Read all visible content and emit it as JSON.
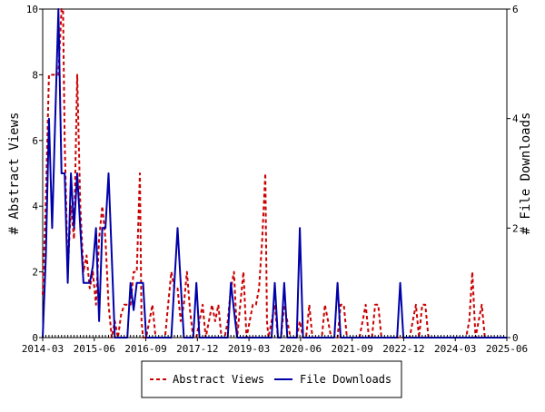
{
  "chart_data": {
    "type": "line",
    "x_tick_labels": [
      "2014-03",
      "2015-06",
      "2016-09",
      "2017-12",
      "2019-03",
      "2020-06",
      "2021-09",
      "2022-12",
      "2024-03",
      "2025-06"
    ],
    "left_axis": {
      "label": "# Abstract Views",
      "ylim": [
        0,
        10
      ],
      "ticks": [
        "0",
        "2",
        "4",
        "6",
        "8",
        "10"
      ]
    },
    "right_axis": {
      "label": "# File Downloads",
      "ylim": [
        0,
        6
      ],
      "ticks": [
        "0",
        "2",
        "4",
        "6"
      ]
    },
    "grid": false,
    "legend_position": "bottom-center",
    "series": [
      {
        "name": "Abstract Views",
        "axis": "left",
        "color": "#cc0000",
        "style": "dashed",
        "points": [
          [
            0,
            1.3
          ],
          [
            1,
            4.2
          ],
          [
            2,
            8
          ],
          [
            3,
            8
          ],
          [
            4,
            8
          ],
          [
            5,
            8
          ],
          [
            6,
            10
          ],
          [
            6.5,
            10
          ],
          [
            7,
            6
          ],
          [
            8,
            2
          ],
          [
            9,
            4
          ],
          [
            10,
            3
          ],
          [
            11,
            8
          ],
          [
            12,
            4
          ],
          [
            13,
            2
          ],
          [
            14,
            2.5
          ],
          [
            15,
            1.5
          ],
          [
            16,
            2
          ],
          [
            17,
            1
          ],
          [
            18,
            3
          ],
          [
            19,
            4
          ],
          [
            20,
            3
          ],
          [
            21,
            1
          ],
          [
            22,
            0
          ],
          [
            23,
            0.5
          ],
          [
            24,
            0
          ],
          [
            25,
            0.7
          ],
          [
            26,
            1
          ],
          [
            27,
            1
          ],
          [
            28,
            1
          ],
          [
            29,
            2
          ],
          [
            30,
            2
          ],
          [
            31,
            5
          ],
          [
            31.5,
            0.5
          ],
          [
            32,
            0
          ],
          [
            33,
            0
          ],
          [
            34,
            0.5
          ],
          [
            35,
            1
          ],
          [
            36,
            0
          ],
          [
            37,
            0
          ],
          [
            38,
            0
          ],
          [
            39,
            0
          ],
          [
            40,
            1
          ],
          [
            41,
            2
          ],
          [
            42,
            1.5
          ],
          [
            43,
            1.5
          ],
          [
            44,
            0.5
          ],
          [
            45,
            1
          ],
          [
            46,
            2
          ],
          [
            47,
            0.8
          ],
          [
            48,
            0
          ],
          [
            49,
            0
          ],
          [
            50,
            0.5
          ],
          [
            51,
            1
          ],
          [
            52,
            0
          ],
          [
            53,
            0.5
          ],
          [
            54,
            1
          ],
          [
            55,
            0.5
          ],
          [
            56,
            1
          ],
          [
            57,
            0
          ],
          [
            58,
            0
          ],
          [
            59,
            0.5
          ],
          [
            60,
            1.5
          ],
          [
            61,
            2
          ],
          [
            62,
            0
          ],
          [
            63,
            1
          ],
          [
            64,
            2
          ],
          [
            65,
            0
          ],
          [
            66,
            0.5
          ],
          [
            67,
            1
          ],
          [
            68,
            1
          ],
          [
            69,
            1.5
          ],
          [
            70,
            3
          ],
          [
            71,
            5
          ],
          [
            71.5,
            0.5
          ],
          [
            72,
            0
          ],
          [
            73,
            0.5
          ],
          [
            74,
            1
          ],
          [
            75,
            0
          ],
          [
            76,
            0
          ],
          [
            77,
            1
          ],
          [
            78,
            0.5
          ],
          [
            79,
            0
          ],
          [
            80,
            0
          ],
          [
            81,
            0
          ],
          [
            82,
            0.5
          ],
          [
            83,
            0
          ],
          [
            84,
            0
          ],
          [
            85,
            1
          ],
          [
            86,
            0
          ],
          [
            87,
            0
          ],
          [
            88,
            0
          ],
          [
            89,
            0
          ],
          [
            90,
            1
          ],
          [
            91,
            0.5
          ],
          [
            92,
            0
          ],
          [
            93,
            0
          ],
          [
            94,
            0
          ],
          [
            95,
            1
          ],
          [
            96,
            1
          ],
          [
            97,
            0
          ],
          [
            98,
            0
          ],
          [
            99,
            0
          ],
          [
            100,
            0
          ],
          [
            101,
            0
          ],
          [
            102,
            0.5
          ],
          [
            103,
            1
          ],
          [
            104,
            0
          ],
          [
            105,
            0
          ],
          [
            106,
            1
          ],
          [
            107,
            1
          ],
          [
            108,
            0
          ],
          [
            109,
            0
          ],
          [
            110,
            0
          ],
          [
            111,
            0
          ],
          [
            112,
            0
          ],
          [
            113,
            0
          ],
          [
            114,
            0
          ],
          [
            115,
            0
          ],
          [
            116,
            0
          ],
          [
            117,
            0
          ],
          [
            118,
            0.5
          ],
          [
            119,
            1
          ],
          [
            120,
            0
          ],
          [
            121,
            1
          ],
          [
            122,
            1
          ],
          [
            123,
            0
          ],
          [
            124,
            0
          ],
          [
            125,
            0
          ],
          [
            126,
            0
          ],
          [
            127,
            0
          ],
          [
            128,
            0
          ],
          [
            129,
            0
          ],
          [
            130,
            0
          ],
          [
            131,
            0
          ],
          [
            132,
            0
          ],
          [
            133,
            0
          ],
          [
            134,
            0
          ],
          [
            135,
            0
          ],
          [
            136,
            0.5
          ],
          [
            137,
            2
          ],
          [
            138,
            0
          ],
          [
            139,
            0.5
          ],
          [
            140,
            1
          ],
          [
            141,
            0
          ],
          [
            142,
            0
          ],
          [
            143,
            0
          ],
          [
            144,
            0
          ],
          [
            145,
            0
          ],
          [
            146,
            0
          ],
          [
            147,
            0
          ],
          [
            148,
            0
          ]
        ]
      },
      {
        "name": "File Downloads",
        "axis": "right",
        "color": "#0000aa",
        "style": "solid",
        "points": [
          [
            0,
            0
          ],
          [
            1,
            1.5
          ],
          [
            2,
            4
          ],
          [
            3,
            2
          ],
          [
            4,
            4
          ],
          [
            5,
            6
          ],
          [
            6,
            3
          ],
          [
            7,
            3
          ],
          [
            8,
            1
          ],
          [
            9,
            3
          ],
          [
            10,
            2
          ],
          [
            11,
            3
          ],
          [
            12,
            2
          ],
          [
            13,
            1
          ],
          [
            14,
            1
          ],
          [
            15,
            1
          ],
          [
            16,
            1.3
          ],
          [
            17,
            2
          ],
          [
            18,
            0.3
          ],
          [
            19,
            2
          ],
          [
            20,
            2
          ],
          [
            21,
            3
          ],
          [
            22,
            1.5
          ],
          [
            23,
            0
          ],
          [
            24,
            0
          ],
          [
            25,
            0
          ],
          [
            26,
            0
          ],
          [
            27,
            0
          ],
          [
            28,
            1
          ],
          [
            29,
            0.5
          ],
          [
            30,
            1
          ],
          [
            31,
            1
          ],
          [
            32,
            1
          ],
          [
            33,
            0
          ],
          [
            34,
            0
          ],
          [
            35,
            0
          ],
          [
            36,
            0
          ],
          [
            37,
            0
          ],
          [
            38,
            0
          ],
          [
            39,
            0
          ],
          [
            40,
            0
          ],
          [
            41,
            0
          ],
          [
            42,
            1
          ],
          [
            43,
            2
          ],
          [
            44,
            1
          ],
          [
            45,
            0
          ],
          [
            46,
            0
          ],
          [
            47,
            0
          ],
          [
            48,
            0
          ],
          [
            49,
            1
          ],
          [
            50,
            0
          ],
          [
            51,
            0
          ],
          [
            52,
            0
          ],
          [
            53,
            0
          ],
          [
            54,
            0
          ],
          [
            55,
            0
          ],
          [
            56,
            0
          ],
          [
            57,
            0
          ],
          [
            58,
            0
          ],
          [
            59,
            0
          ],
          [
            60,
            1
          ],
          [
            61,
            0.5
          ],
          [
            62,
            0
          ],
          [
            63,
            0
          ],
          [
            64,
            0
          ],
          [
            65,
            0
          ],
          [
            66,
            0
          ],
          [
            67,
            0
          ],
          [
            68,
            0
          ],
          [
            69,
            0
          ],
          [
            70,
            0
          ],
          [
            71,
            0
          ],
          [
            72,
            0
          ],
          [
            73,
            0
          ],
          [
            74,
            1
          ],
          [
            75,
            0
          ],
          [
            76,
            0
          ],
          [
            77,
            1
          ],
          [
            78,
            0
          ],
          [
            79,
            0
          ],
          [
            80,
            0
          ],
          [
            81,
            0
          ],
          [
            82,
            2
          ],
          [
            83,
            0
          ],
          [
            84,
            0
          ],
          [
            85,
            0
          ],
          [
            86,
            0
          ],
          [
            87,
            0
          ],
          [
            88,
            0
          ],
          [
            89,
            0
          ],
          [
            90,
            0
          ],
          [
            91,
            0
          ],
          [
            92,
            0
          ],
          [
            93,
            0
          ],
          [
            94,
            1
          ],
          [
            95,
            0
          ],
          [
            96,
            0
          ],
          [
            97,
            0
          ],
          [
            98,
            0
          ],
          [
            99,
            0
          ],
          [
            100,
            0
          ],
          [
            101,
            0
          ],
          [
            102,
            0
          ],
          [
            103,
            0
          ],
          [
            104,
            0
          ],
          [
            105,
            0
          ],
          [
            106,
            0
          ],
          [
            107,
            0
          ],
          [
            108,
            0
          ],
          [
            109,
            0
          ],
          [
            110,
            0
          ],
          [
            111,
            0
          ],
          [
            112,
            0
          ],
          [
            113,
            0
          ],
          [
            114,
            1
          ],
          [
            115,
            0
          ],
          [
            116,
            0
          ],
          [
            117,
            0
          ],
          [
            118,
            0
          ],
          [
            119,
            0
          ],
          [
            120,
            0
          ],
          [
            121,
            0
          ],
          [
            122,
            0
          ],
          [
            123,
            0
          ],
          [
            124,
            0
          ],
          [
            125,
            0
          ],
          [
            126,
            0
          ],
          [
            127,
            0
          ],
          [
            128,
            0
          ],
          [
            129,
            0
          ],
          [
            130,
            0
          ],
          [
            131,
            0
          ],
          [
            132,
            0
          ],
          [
            133,
            0
          ],
          [
            134,
            0
          ],
          [
            135,
            0
          ],
          [
            136,
            0
          ],
          [
            137,
            0
          ],
          [
            138,
            0
          ],
          [
            139,
            0
          ],
          [
            140,
            0
          ],
          [
            141,
            0
          ],
          [
            142,
            0
          ],
          [
            143,
            0
          ],
          [
            144,
            0
          ],
          [
            145,
            0
          ],
          [
            146,
            0
          ],
          [
            147,
            0
          ],
          [
            148,
            0
          ]
        ]
      }
    ]
  },
  "legend": {
    "abstract_views": "Abstract Views",
    "file_downloads": "File Downloads"
  }
}
